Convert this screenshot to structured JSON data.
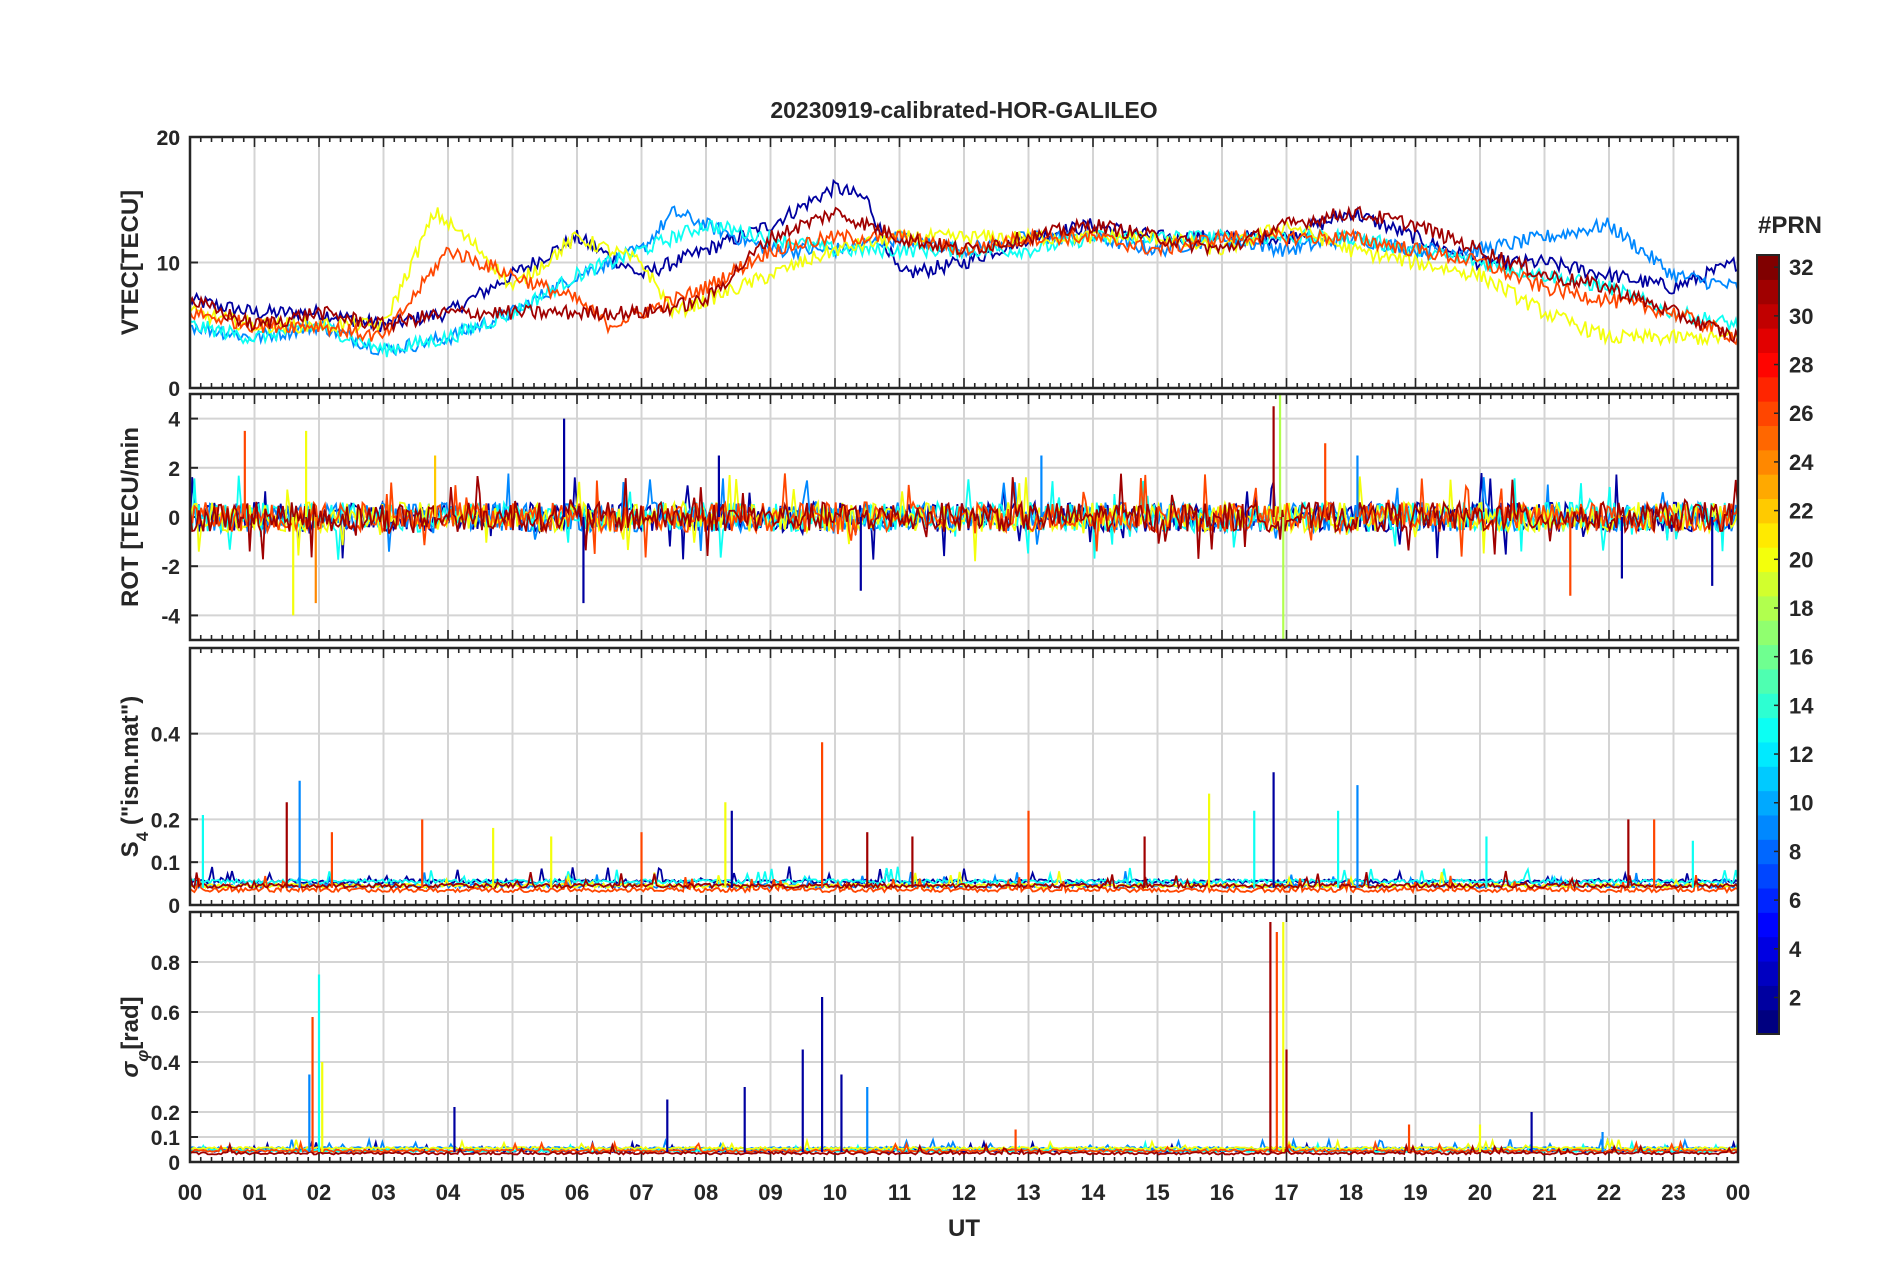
{
  "chart_data": {
    "type": "line",
    "title": "20230919-calibrated-HOR-GALILEO",
    "xlabel": "UT",
    "x_ticks": [
      "00",
      "01",
      "02",
      "03",
      "04",
      "05",
      "06",
      "07",
      "08",
      "09",
      "10",
      "11",
      "12",
      "13",
      "14",
      "15",
      "16",
      "17",
      "18",
      "19",
      "20",
      "21",
      "22",
      "23",
      "00"
    ],
    "xlim": [
      0,
      24
    ],
    "colorbar": {
      "label": "#PRN",
      "range": [
        1,
        32
      ],
      "ticks": [
        "2",
        "4",
        "6",
        "8",
        "10",
        "12",
        "14",
        "16",
        "18",
        "20",
        "22",
        "24",
        "26",
        "28",
        "30",
        "32"
      ],
      "colormap": "jet"
    },
    "panels": [
      {
        "name": "vtec",
        "ylabel": "VTEC[TECU]",
        "ylim": [
          0,
          20
        ],
        "yticks": [
          0,
          10,
          20
        ],
        "ytick_labels": [
          "0",
          "10",
          "20"
        ],
        "baseline": 5,
        "noise": 1.2,
        "series": [
          {
            "prn": 2,
            "x": [
              0,
              1,
              2,
              3,
              4,
              5,
              6,
              7,
              8,
              9,
              10,
              10.5,
              11,
              12,
              13,
              14,
              15,
              16,
              17,
              18,
              19,
              20,
              21,
              22,
              23,
              24
            ],
            "values": [
              7,
              6,
              6,
              5,
              6,
              9,
              12,
              9,
              11,
              13,
              16,
              15,
              9,
              10,
              12,
              13,
              12,
              12,
              12,
              14,
              12,
              10,
              10,
              9,
              8,
              10
            ]
          },
          {
            "prn": 9,
            "x": [
              0,
              1,
              2,
              3,
              4,
              5,
              6,
              7,
              7.5,
              8,
              9,
              10,
              11,
              12,
              13,
              14,
              15,
              16,
              17,
              18,
              19,
              20,
              21,
              22,
              23,
              24
            ],
            "values": [
              5,
              4,
              5,
              3,
              4,
              6,
              9,
              11,
              14,
              13,
              11,
              11,
              12,
              11,
              12,
              12,
              11,
              12,
              11,
              12,
              11,
              11,
              12,
              13,
              9,
              8
            ]
          },
          {
            "prn": 13,
            "x": [
              0,
              1,
              2,
              3,
              4,
              5,
              6,
              7,
              8,
              9,
              10,
              11,
              12,
              13,
              14,
              15,
              16,
              17,
              18,
              19,
              20,
              21,
              22,
              23,
              24
            ],
            "values": [
              5,
              4,
              5,
              3,
              4,
              6,
              9,
              11,
              13,
              12,
              11,
              11,
              11,
              11,
              12,
              12,
              12,
              12,
              12,
              11,
              10,
              9,
              8,
              6,
              5
            ]
          },
          {
            "prn": 20,
            "x": [
              0,
              1,
              2,
              3,
              3.8,
              4.5,
              5,
              6,
              7,
              7.5,
              8,
              9,
              10,
              11,
              12,
              13,
              14,
              15,
              16,
              17,
              18,
              19,
              20,
              21,
              22,
              23,
              24
            ],
            "values": [
              6,
              5,
              5,
              5,
              14,
              11,
              8,
              12,
              10,
              6,
              7,
              9,
              11,
              12,
              12,
              12,
              12,
              12,
              11,
              13,
              11,
              10,
              9,
              6,
              4,
              4,
              4
            ]
          },
          {
            "prn": 26,
            "x": [
              0,
              1,
              2,
              3,
              4,
              5,
              6,
              6.5,
              7,
              8,
              9,
              10,
              11,
              12,
              13,
              14,
              15,
              16,
              17,
              18,
              19,
              20,
              21,
              22,
              23,
              24
            ],
            "values": [
              6,
              5,
              5,
              4,
              11,
              9,
              7,
              5,
              6,
              8,
              11,
              12,
              12,
              11,
              12,
              12,
              11,
              12,
              12,
              12,
              11,
              10,
              8,
              7,
              6,
              4
            ]
          },
          {
            "prn": 31,
            "x": [
              0,
              1,
              2,
              3,
              4,
              5,
              6,
              7,
              8,
              9,
              10,
              11,
              12,
              13,
              14,
              15,
              16,
              17,
              18,
              19,
              20,
              21,
              22,
              23,
              24
            ],
            "values": [
              7,
              5,
              6,
              5,
              6,
              6,
              6,
              6,
              7,
              12,
              14,
              12,
              11,
              12,
              13,
              12,
              11,
              13,
              14,
              13,
              11,
              9,
              8,
              6,
              4
            ]
          }
        ]
      },
      {
        "name": "rot",
        "ylabel": "ROT [TECU/min",
        "ylim": [
          -5,
          5
        ],
        "yticks": [
          -4,
          -2,
          0,
          2,
          4
        ],
        "ytick_labels": [
          "-4",
          "-2",
          "0",
          "2",
          "4"
        ],
        "baseline": 0,
        "noise": 0.6,
        "series": [
          {
            "prn": 2,
            "x": [
              0,
              24
            ],
            "values": [
              0,
              0
            ]
          },
          {
            "prn": 9,
            "x": [
              0,
              24
            ],
            "values": [
              0,
              0
            ]
          },
          {
            "prn": 13,
            "x": [
              0,
              24
            ],
            "values": [
              0,
              0
            ]
          },
          {
            "prn": 20,
            "x": [
              0,
              24
            ],
            "values": [
              0,
              0
            ]
          },
          {
            "prn": 26,
            "x": [
              0,
              24
            ],
            "values": [
              0,
              0
            ]
          },
          {
            "prn": 31,
            "x": [
              0,
              24
            ],
            "values": [
              0,
              0
            ]
          }
        ]
      },
      {
        "name": "s4",
        "ylabel_main": "S",
        "ylabel_sub": "4",
        "ylabel_rest": " (\"ism.mat\")",
        "ylim": [
          0,
          0.6
        ],
        "yticks": [
          0,
          0.1,
          0.2,
          0.4
        ],
        "ytick_labels": [
          "0",
          "0.1",
          "0.2",
          "0.4"
        ],
        "baseline": 0.04,
        "noise": 0.02,
        "series": [
          {
            "prn": 2,
            "x": [
              0,
              24
            ],
            "values": [
              0.05,
              0.05
            ]
          },
          {
            "prn": 9,
            "x": [
              0,
              24
            ],
            "values": [
              0.04,
              0.04
            ]
          },
          {
            "prn": 13,
            "x": [
              0,
              24
            ],
            "values": [
              0.05,
              0.05
            ]
          },
          {
            "prn": 20,
            "x": [
              0,
              24
            ],
            "values": [
              0.04,
              0.04
            ]
          },
          {
            "prn": 26,
            "x": [
              0,
              24
            ],
            "values": [
              0.03,
              0.03
            ]
          },
          {
            "prn": 31,
            "x": [
              0,
              24
            ],
            "values": [
              0.04,
              0.04
            ]
          }
        ]
      },
      {
        "name": "sigma",
        "ylabel_main": "σ",
        "ylabel_sub": "φ",
        "ylabel_rest": "[rad]",
        "ylim": [
          0,
          1
        ],
        "yticks": [
          0,
          0.1,
          0.2,
          0.4,
          0.6,
          0.8
        ],
        "ytick_labels": [
          "0",
          "0.1",
          "0.2",
          "0.4",
          "0.6",
          "0.8"
        ],
        "baseline": 0.04,
        "noise": 0.02,
        "series": [
          {
            "prn": 2,
            "x": [
              0,
              24
            ],
            "values": [
              0.04,
              0.04
            ]
          },
          {
            "prn": 9,
            "x": [
              0,
              24
            ],
            "values": [
              0.05,
              0.05
            ]
          },
          {
            "prn": 13,
            "x": [
              0,
              24
            ],
            "values": [
              0.04,
              0.04
            ]
          },
          {
            "prn": 20,
            "x": [
              0,
              24
            ],
            "values": [
              0.05,
              0.05
            ]
          },
          {
            "prn": 26,
            "x": [
              0,
              24
            ],
            "values": [
              0.04,
              0.04
            ]
          },
          {
            "prn": 31,
            "x": [
              0,
              24
            ],
            "values": [
              0.03,
              0.03
            ]
          }
        ]
      }
    ],
    "peaks": {
      "rot": [
        [
          0.85,
          3.5,
          26
        ],
        [
          1.6,
          -4,
          20
        ],
        [
          1.8,
          3.5,
          20
        ],
        [
          1.95,
          -3.5,
          24
        ],
        [
          3.8,
          2.5,
          22
        ],
        [
          5.8,
          4,
          2
        ],
        [
          6.1,
          -3.5,
          2
        ],
        [
          8.2,
          2.5,
          2
        ],
        [
          10.4,
          -3,
          2
        ],
        [
          13.2,
          2.5,
          9
        ],
        [
          16.8,
          4.5,
          31
        ],
        [
          16.9,
          5,
          18
        ],
        [
          16.95,
          -5,
          18
        ],
        [
          17.6,
          3,
          26
        ],
        [
          18.1,
          2.5,
          9
        ],
        [
          21.4,
          -3.2,
          26
        ],
        [
          22.2,
          -2.5,
          2
        ],
        [
          23.6,
          -2.8,
          2
        ]
      ],
      "s4": [
        [
          0.2,
          0.21,
          13
        ],
        [
          1.5,
          0.24,
          31
        ],
        [
          1.7,
          0.29,
          9
        ],
        [
          2.2,
          0.17,
          26
        ],
        [
          3.6,
          0.2,
          26
        ],
        [
          4.7,
          0.18,
          20
        ],
        [
          5.6,
          0.16,
          20
        ],
        [
          7.0,
          0.17,
          26
        ],
        [
          8.3,
          0.24,
          20
        ],
        [
          8.4,
          0.22,
          2
        ],
        [
          9.8,
          0.38,
          26
        ],
        [
          10.5,
          0.17,
          31
        ],
        [
          11.2,
          0.16,
          31
        ],
        [
          13.0,
          0.22,
          26
        ],
        [
          14.8,
          0.16,
          31
        ],
        [
          15.8,
          0.26,
          20
        ],
        [
          16.5,
          0.22,
          13
        ],
        [
          16.8,
          0.31,
          2
        ],
        [
          17.8,
          0.22,
          13
        ],
        [
          18.1,
          0.28,
          9
        ],
        [
          20.1,
          0.16,
          13
        ],
        [
          22.3,
          0.2,
          31
        ],
        [
          22.7,
          0.2,
          26
        ],
        [
          23.3,
          0.15,
          13
        ]
      ],
      "sigma": [
        [
          1.9,
          0.58,
          26
        ],
        [
          2.0,
          0.75,
          13
        ],
        [
          2.05,
          0.4,
          20
        ],
        [
          1.85,
          0.35,
          9
        ],
        [
          4.1,
          0.22,
          2
        ],
        [
          7.4,
          0.25,
          2
        ],
        [
          8.6,
          0.3,
          2
        ],
        [
          9.5,
          0.45,
          2
        ],
        [
          9.8,
          0.66,
          2
        ],
        [
          10.1,
          0.35,
          2
        ],
        [
          10.5,
          0.3,
          9
        ],
        [
          12.8,
          0.13,
          26
        ],
        [
          16.75,
          0.96,
          31
        ],
        [
          16.85,
          0.92,
          26
        ],
        [
          16.95,
          0.96,
          20
        ],
        [
          17.0,
          0.45,
          31
        ],
        [
          18.9,
          0.15,
          26
        ],
        [
          20.0,
          0.15,
          20
        ],
        [
          20.8,
          0.2,
          2
        ],
        [
          21.9,
          0.12,
          9
        ]
      ]
    }
  }
}
